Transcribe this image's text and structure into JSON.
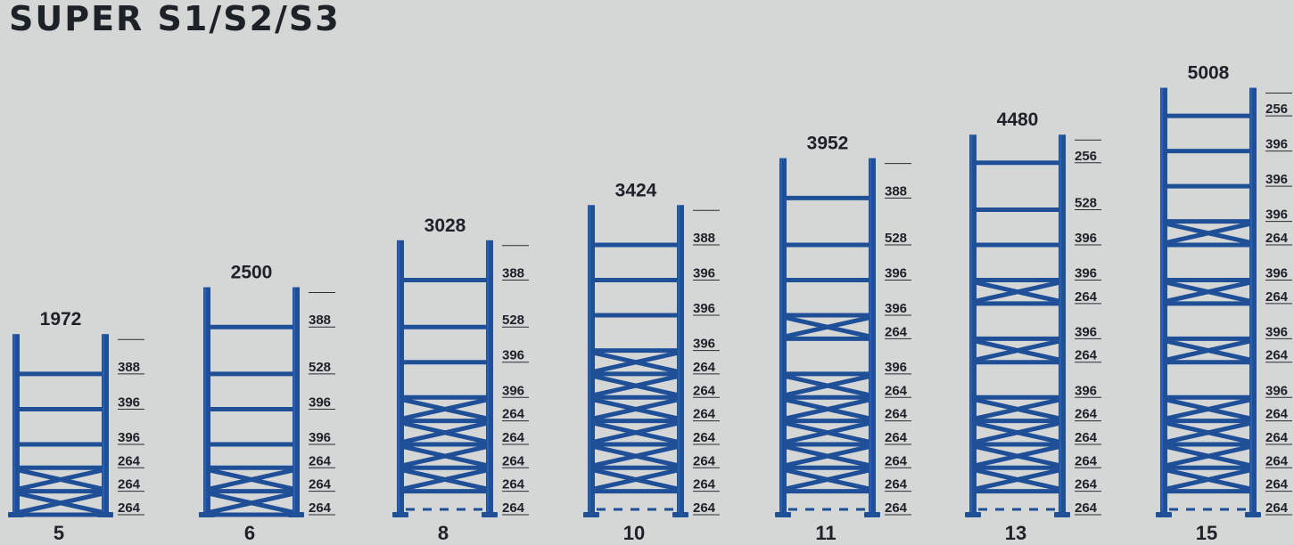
{
  "title": "SUPER S1/S2/S3",
  "colors": {
    "background": "#d5d6d6",
    "frame": "#1f4f97",
    "frame_highlight": "#2f66b8",
    "text": "#1d2128",
    "rule": "#2a2d33"
  },
  "frames": [
    {
      "count": "5",
      "height": "1972",
      "segments": [
        {
          "label": "388",
          "mm": 388,
          "type": "beam"
        },
        {
          "label": "396",
          "mm": 396,
          "type": "beam"
        },
        {
          "label": "396",
          "mm": 396,
          "type": "beam"
        },
        {
          "label": "264",
          "mm": 264,
          "type": "beam"
        },
        {
          "label": "264",
          "mm": 264,
          "type": "cross"
        },
        {
          "label": "264",
          "mm": 264,
          "type": "cross"
        }
      ]
    },
    {
      "count": "6",
      "height": "2500",
      "segments": [
        {
          "label": "388",
          "mm": 388,
          "type": "beam"
        },
        {
          "label": "528",
          "mm": 528,
          "type": "beam"
        },
        {
          "label": "396",
          "mm": 396,
          "type": "beam"
        },
        {
          "label": "396",
          "mm": 396,
          "type": "beam"
        },
        {
          "label": "264",
          "mm": 264,
          "type": "beam"
        },
        {
          "label": "264",
          "mm": 264,
          "type": "cross"
        },
        {
          "label": "264",
          "mm": 264,
          "type": "cross"
        }
      ]
    },
    {
      "count": "8",
      "height": "3028",
      "segments": [
        {
          "label": "388",
          "mm": 388,
          "type": "beam"
        },
        {
          "label": "528",
          "mm": 528,
          "type": "beam"
        },
        {
          "label": "396",
          "mm": 396,
          "type": "beam"
        },
        {
          "label": "396",
          "mm": 396,
          "type": "beam"
        },
        {
          "label": "264",
          "mm": 264,
          "type": "cross"
        },
        {
          "label": "264",
          "mm": 264,
          "type": "cross"
        },
        {
          "label": "264",
          "mm": 264,
          "type": "cross"
        },
        {
          "label": "264",
          "mm": 264,
          "type": "cross"
        },
        {
          "label": "264",
          "mm": 264,
          "type": "dashed"
        }
      ]
    },
    {
      "count": "10",
      "height": "3424",
      "segments": [
        {
          "label": "388",
          "mm": 388,
          "type": "beam"
        },
        {
          "label": "396",
          "mm": 396,
          "type": "beam"
        },
        {
          "label": "396",
          "mm": 396,
          "type": "beam"
        },
        {
          "label": "396",
          "mm": 396,
          "type": "beam"
        },
        {
          "label": "264",
          "mm": 264,
          "type": "cross"
        },
        {
          "label": "264",
          "mm": 264,
          "type": "cross"
        },
        {
          "label": "264",
          "mm": 264,
          "type": "cross"
        },
        {
          "label": "264",
          "mm": 264,
          "type": "cross"
        },
        {
          "label": "264",
          "mm": 264,
          "type": "cross"
        },
        {
          "label": "264",
          "mm": 264,
          "type": "cross"
        },
        {
          "label": "264",
          "mm": 264,
          "type": "dashed"
        }
      ]
    },
    {
      "count": "11",
      "height": "3952",
      "segments": [
        {
          "label": "388",
          "mm": 388,
          "type": "beam"
        },
        {
          "label": "528",
          "mm": 528,
          "type": "beam"
        },
        {
          "label": "396",
          "mm": 396,
          "type": "beam"
        },
        {
          "label": "396",
          "mm": 396,
          "type": "beam"
        },
        {
          "label": "264",
          "mm": 264,
          "type": "cross"
        },
        {
          "label": "396",
          "mm": 396,
          "type": "beam"
        },
        {
          "label": "264",
          "mm": 264,
          "type": "cross"
        },
        {
          "label": "264",
          "mm": 264,
          "type": "cross"
        },
        {
          "label": "264",
          "mm": 264,
          "type": "cross"
        },
        {
          "label": "264",
          "mm": 264,
          "type": "cross"
        },
        {
          "label": "264",
          "mm": 264,
          "type": "cross"
        },
        {
          "label": "264",
          "mm": 264,
          "type": "dashed"
        }
      ]
    },
    {
      "count": "13",
      "height": "4480",
      "segments": [
        {
          "label": "256",
          "mm": 256,
          "type": "beam"
        },
        {
          "label": "528",
          "mm": 528,
          "type": "beam"
        },
        {
          "label": "396",
          "mm": 396,
          "type": "beam"
        },
        {
          "label": "396",
          "mm": 396,
          "type": "beam"
        },
        {
          "label": "264",
          "mm": 264,
          "type": "cross"
        },
        {
          "label": "396",
          "mm": 396,
          "type": "beam"
        },
        {
          "label": "264",
          "mm": 264,
          "type": "cross"
        },
        {
          "label": "396",
          "mm": 396,
          "type": "beam"
        },
        {
          "label": "264",
          "mm": 264,
          "type": "cross"
        },
        {
          "label": "264",
          "mm": 264,
          "type": "cross"
        },
        {
          "label": "264",
          "mm": 264,
          "type": "cross"
        },
        {
          "label": "264",
          "mm": 264,
          "type": "cross"
        },
        {
          "label": "264",
          "mm": 264,
          "type": "dashed"
        }
      ]
    },
    {
      "count": "15",
      "height": "5008",
      "segments": [
        {
          "label": "256",
          "mm": 256,
          "type": "beam"
        },
        {
          "label": "396",
          "mm": 396,
          "type": "beam"
        },
        {
          "label": "396",
          "mm": 396,
          "type": "beam"
        },
        {
          "label": "396",
          "mm": 396,
          "type": "beam"
        },
        {
          "label": "264",
          "mm": 264,
          "type": "cross"
        },
        {
          "label": "396",
          "mm": 396,
          "type": "beam"
        },
        {
          "label": "264",
          "mm": 264,
          "type": "cross"
        },
        {
          "label": "396",
          "mm": 396,
          "type": "beam"
        },
        {
          "label": "264",
          "mm": 264,
          "type": "cross"
        },
        {
          "label": "396",
          "mm": 396,
          "type": "beam"
        },
        {
          "label": "264",
          "mm": 264,
          "type": "cross"
        },
        {
          "label": "264",
          "mm": 264,
          "type": "cross"
        },
        {
          "label": "264",
          "mm": 264,
          "type": "cross"
        },
        {
          "label": "264",
          "mm": 264,
          "type": "cross"
        },
        {
          "label": "264",
          "mm": 264,
          "type": "dashed"
        }
      ]
    }
  ]
}
